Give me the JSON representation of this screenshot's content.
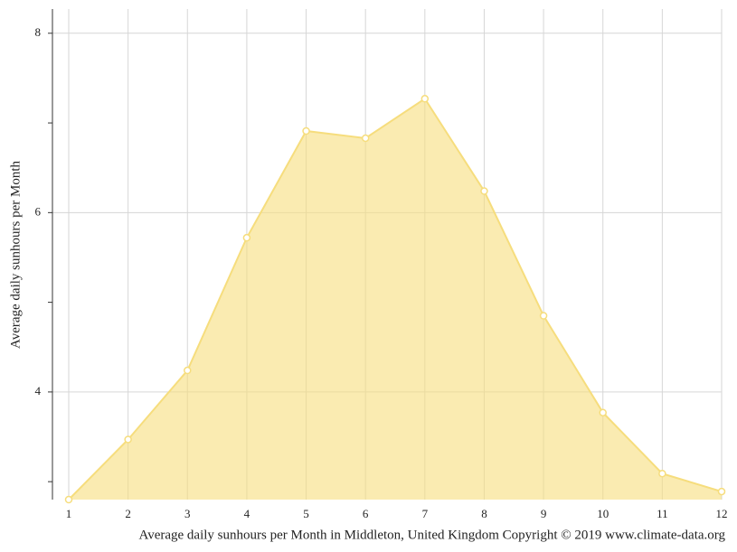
{
  "chart_data": {
    "type": "area",
    "title": "Average daily sunhours per Month in Middleton, United Kingdom Copyright © 2019 www.climate-data.org",
    "y_label": "Average daily sunhours per Month",
    "x": [
      1,
      2,
      3,
      4,
      5,
      6,
      7,
      8,
      9,
      10,
      11,
      12
    ],
    "values": [
      2.8,
      3.47,
      4.24,
      5.72,
      6.91,
      6.83,
      7.27,
      6.24,
      4.85,
      3.77,
      3.09,
      2.89
    ],
    "color": "#f6dd7d",
    "xlim": [
      1,
      12
    ],
    "xticks": [
      1,
      2,
      3,
      4,
      5,
      6,
      7,
      8,
      9,
      10,
      11,
      12
    ],
    "ylim": [
      2.8,
      8.27
    ],
    "yticks": [
      4,
      6,
      8
    ],
    "y_minor_ticks": [
      3,
      5,
      7
    ],
    "grid": true
  }
}
